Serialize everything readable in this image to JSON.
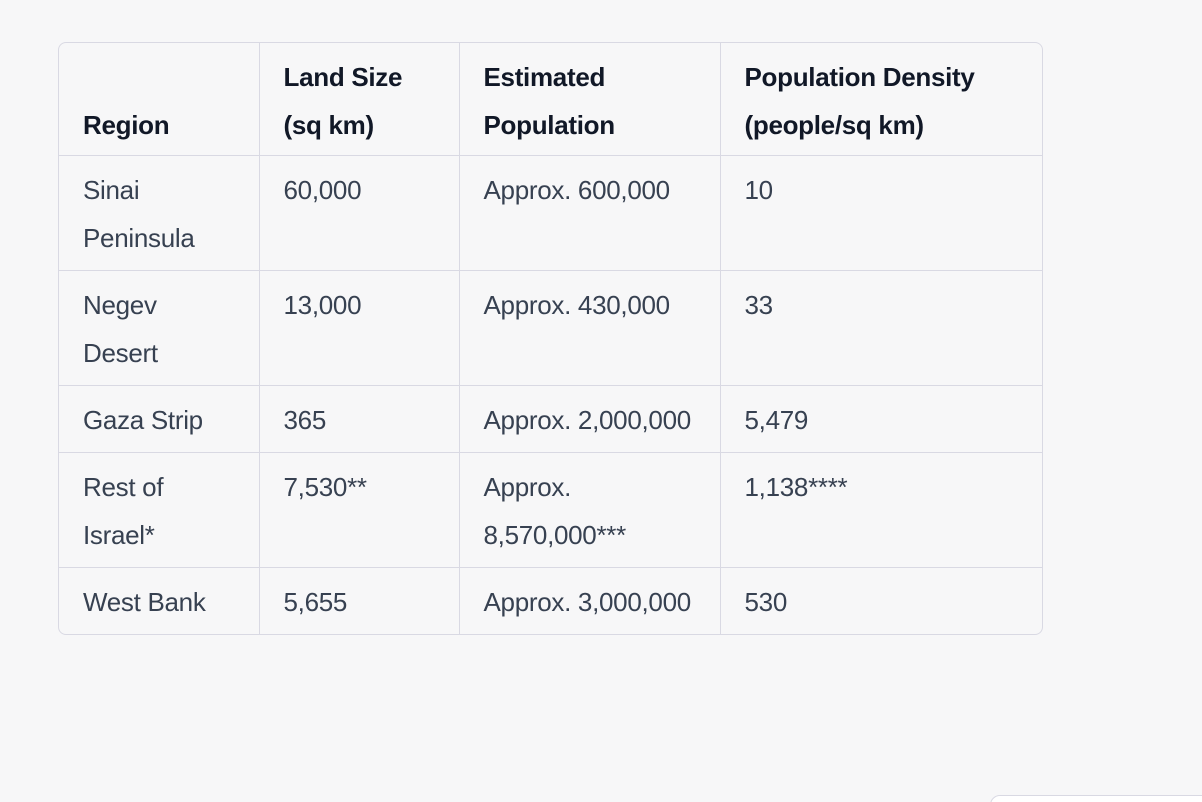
{
  "table": {
    "headers": [
      "Region",
      "Land Size (sq km)",
      "Estimated Population",
      "Population Density (people/sq km)"
    ],
    "rows": [
      [
        "Sinai Peninsula",
        "60,000",
        "Approx. 600,000",
        "10"
      ],
      [
        "Negev Desert",
        "13,000",
        "Approx. 430,000",
        "33"
      ],
      [
        "Gaza Strip",
        "365",
        "Approx. 2,000,000",
        "5,479"
      ],
      [
        "Rest of Israel*",
        "7,530**",
        "Approx. 8,570,000***",
        "1,138****"
      ],
      [
        "West Bank",
        "5,655",
        "Approx. 3,000,000",
        "530"
      ]
    ]
  }
}
